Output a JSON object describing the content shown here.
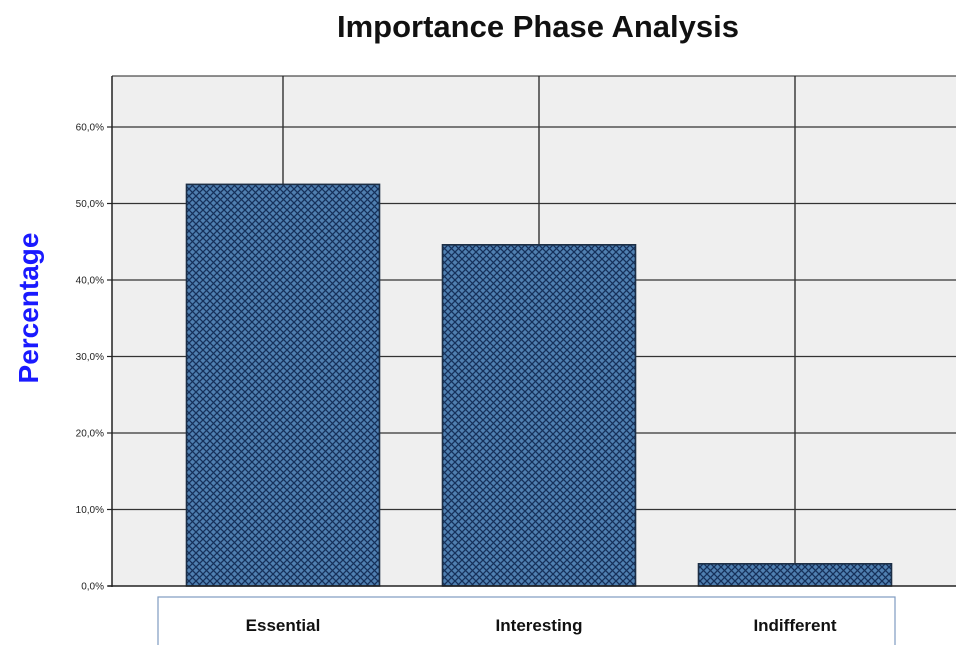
{
  "chart_data": {
    "type": "bar",
    "title": "Importance Phase Analysis",
    "ylabel": "Percentage",
    "xlabel": "",
    "categories": [
      "Essential",
      "Interesting",
      "Indifferent"
    ],
    "values": [
      52.5,
      44.6,
      2.9
    ],
    "ylim": [
      0,
      60
    ],
    "yticks": [
      0,
      10,
      20,
      30,
      40,
      50,
      60
    ],
    "ytick_labels": [
      "0,0%",
      "10,0%",
      "20,0%",
      "30,0%",
      "40,0%",
      "50,0%",
      "60,0%"
    ],
    "grid": true,
    "colors": {
      "bar_fill": "#4f7fb0",
      "bar_pattern": "#15305a",
      "bar_edge": "#1c2e45",
      "plot_background": "#efefef",
      "gridline": "#333333",
      "ylabel": "#1a1aff"
    }
  }
}
